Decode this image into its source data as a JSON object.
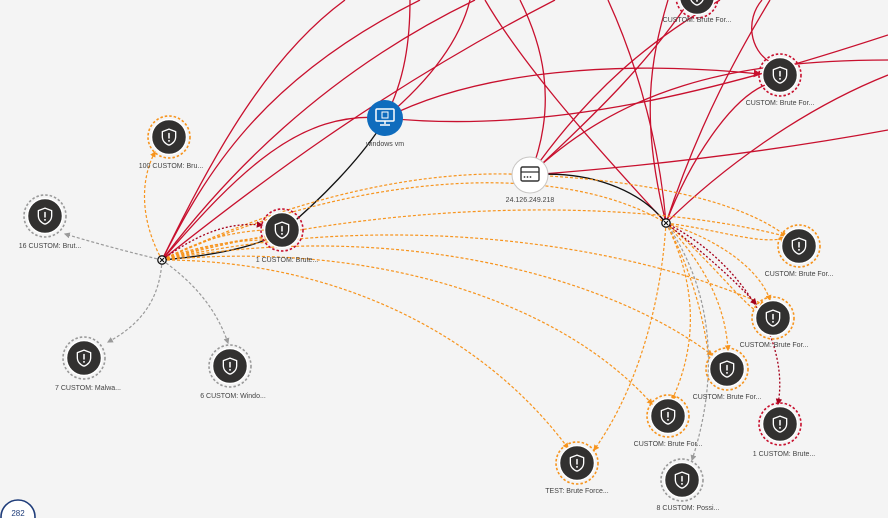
{
  "colors": {
    "high": "#c8102e",
    "medium": "#f7941d",
    "low": "#9a9a9a",
    "darkred": "#a5001b",
    "connector": "#111111",
    "vm": "#0f6cbd",
    "alert_fill": "#323130"
  },
  "entities": {
    "vm": {
      "label": "windows vm",
      "icon": "monitor-icon"
    },
    "ip": {
      "label": "24.126.249.218",
      "icon": "server-icon"
    }
  },
  "alerts": [
    {
      "key": "a_top",
      "label": "CUSTOM: Brute For...",
      "severity": "high",
      "icon": "shield-alert-icon"
    },
    {
      "key": "a_top_right",
      "label": "CUSTOM: Brute For...",
      "severity": "high",
      "icon": "shield-alert-icon"
    },
    {
      "key": "a_100",
      "label": "100 CUSTOM: Bru...",
      "severity": "medium",
      "icon": "shield-alert-icon"
    },
    {
      "key": "a_16",
      "label": "16 CUSTOM: Brut...",
      "severity": "low",
      "icon": "shield-alert-icon"
    },
    {
      "key": "a_1_left",
      "label": "1 CUSTOM: Brute...",
      "severity": "high",
      "icon": "shield-alert-icon"
    },
    {
      "key": "a_7",
      "label": "7 CUSTOM: Malwa...",
      "severity": "low",
      "icon": "shield-alert-icon"
    },
    {
      "key": "a_6",
      "label": "6 CUSTOM: Windo...",
      "severity": "low",
      "icon": "shield-alert-icon"
    },
    {
      "key": "a_r1",
      "label": "CUSTOM: Brute For...",
      "severity": "medium",
      "icon": "shield-alert-icon"
    },
    {
      "key": "a_r2",
      "label": "CUSTOM: Brute For...",
      "severity": "medium",
      "icon": "shield-alert-icon"
    },
    {
      "key": "a_r3",
      "label": "CUSTOM: Brute For...",
      "severity": "medium",
      "icon": "shield-alert-icon"
    },
    {
      "key": "a_r4",
      "label": "CUSTOM: Brute For...",
      "severity": "medium",
      "icon": "shield-alert-icon"
    },
    {
      "key": "a_1_right",
      "label": "1 CUSTOM: Brute...",
      "severity": "high",
      "icon": "shield-alert-icon"
    },
    {
      "key": "a_8",
      "label": "8 CUSTOM: Possi...",
      "severity": "low",
      "icon": "shield-alert-icon"
    },
    {
      "key": "a_test",
      "label": "TEST: Brute Force...",
      "severity": "medium",
      "icon": "shield-alert-icon"
    }
  ],
  "counter": {
    "text": "282"
  }
}
